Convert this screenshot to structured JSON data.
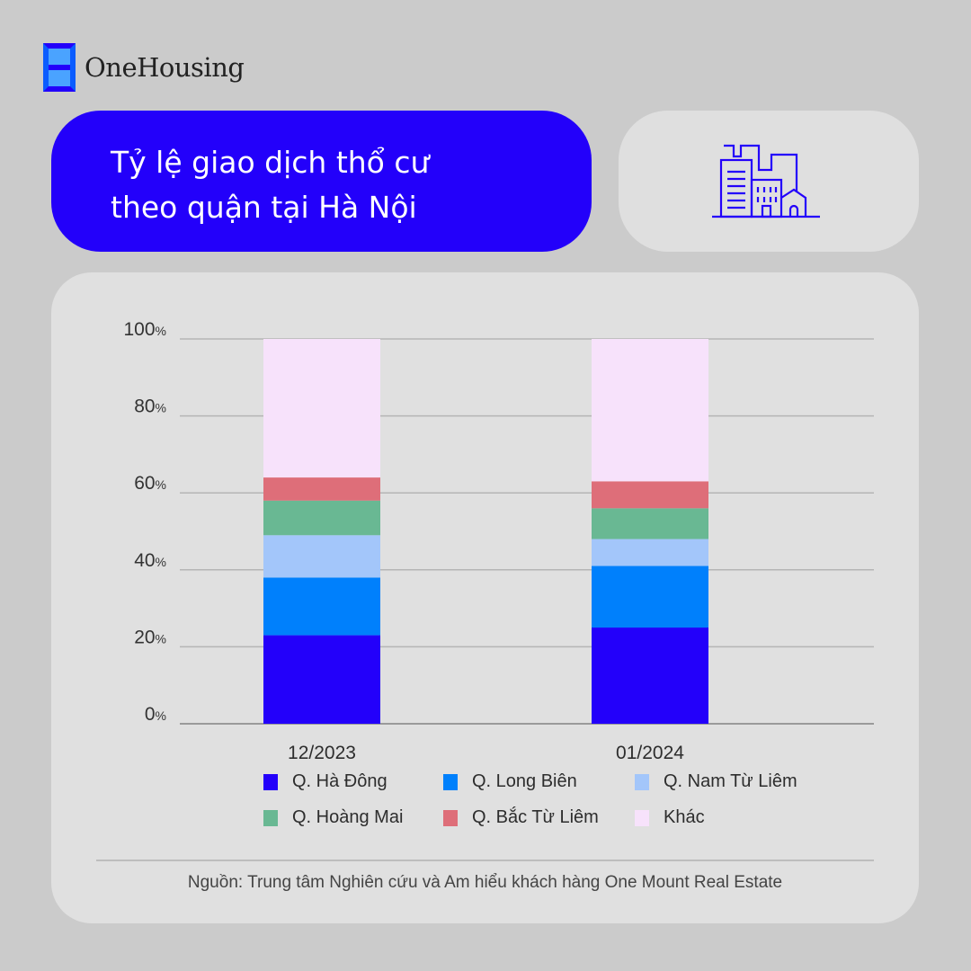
{
  "brand": {
    "name": "OneHousing",
    "logo_icon": "onehousing-logo-icon"
  },
  "title_card": {
    "lines": [
      "Tỷ lệ giao dịch thổ cư",
      "theo quận tại Hà Nội"
    ]
  },
  "icon_card": {
    "icon": "city-buildings-icon",
    "color": "#2300fa"
  },
  "chart_data": {
    "type": "bar",
    "stacked": true,
    "title": "Tỷ lệ giao dịch thổ cư theo quận tại Hà Nội",
    "xlabel": "",
    "ylabel": "",
    "ylim": [
      0,
      100
    ],
    "y_ticks": [
      0,
      20,
      40,
      60,
      80,
      100
    ],
    "y_tick_labels": [
      "0",
      "20",
      "40",
      "60",
      "80",
      "100"
    ],
    "y_tick_suffix": "%",
    "grid": true,
    "categories": [
      "12/2023",
      "01/2024"
    ],
    "series": [
      {
        "name": "Q. Hà Đông",
        "color": "#2300fa",
        "values": [
          23,
          25
        ]
      },
      {
        "name": "Q. Long Biên",
        "color": "#0080fc",
        "values": [
          15,
          16
        ]
      },
      {
        "name": "Q. Nam Từ Liêm",
        "color": "#a3c6fa",
        "values": [
          11,
          7
        ]
      },
      {
        "name": "Q. Hoàng Mai",
        "color": "#69b893",
        "values": [
          9,
          8
        ]
      },
      {
        "name": "Q. Bắc Từ Liêm",
        "color": "#de6e79",
        "values": [
          6,
          7
        ]
      },
      {
        "name": "Khác",
        "color": "#f7e2fb",
        "values": [
          36,
          37
        ]
      }
    ],
    "legend_position": "bottom"
  },
  "source": "Nguồn: Trung tâm Nghiên cứu và Am hiểu khách hàng One Mount Real Estate"
}
